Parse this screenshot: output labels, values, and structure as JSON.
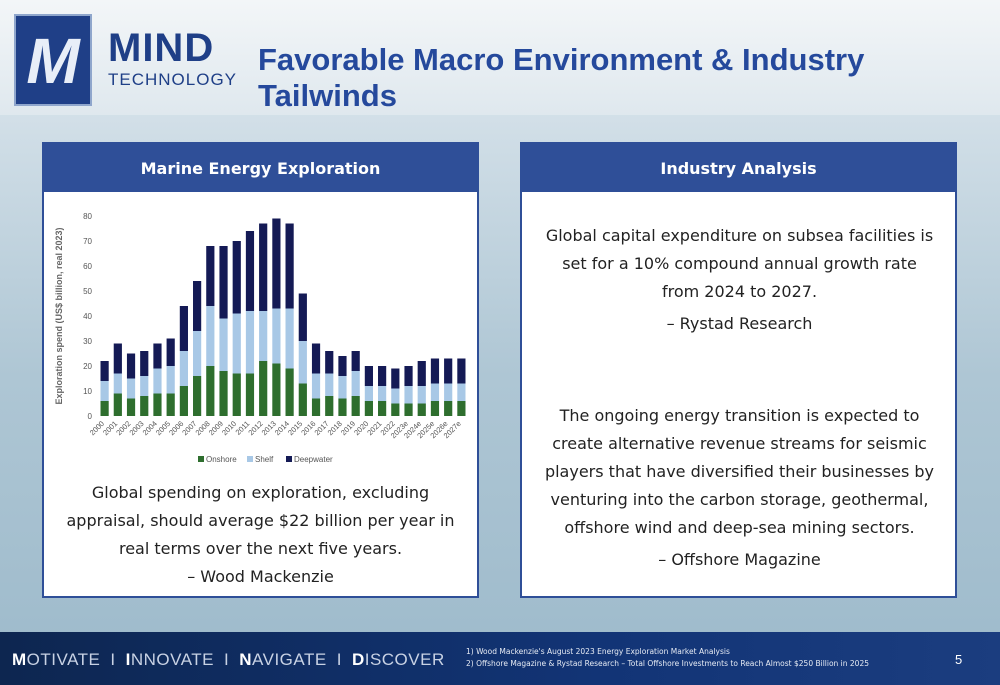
{
  "header": {
    "logo_text_main": "MIND",
    "logo_text_sub": "TECHNOLOGY",
    "logo_mark": "M",
    "title": "Favorable Macro Environment & Industry Tailwinds"
  },
  "left_panel": {
    "heading": "Marine Energy Exploration",
    "quote_lines": [
      "Global spending on exploration, excluding",
      "appraisal, should average $22 billion per year in",
      "real terms over the next five years."
    ],
    "attribution": "– Wood Mackenzie"
  },
  "right_panel": {
    "heading": "Industry Analysis",
    "quote1_lines": [
      "Global capital expenditure on subsea facilities is",
      "set for a 10% compound annual growth rate",
      "from 2024 to 2027."
    ],
    "attribution1": "– Rystad Research",
    "quote2_lines": [
      "The ongoing energy transition is expected to",
      "create alternative revenue streams for seismic",
      "players that have diversified their businesses by",
      "venturing into the carbon storage, geothermal,",
      "offshore wind and deep-sea mining sectors."
    ],
    "attribution2": "– Offshore Magazine"
  },
  "footer": {
    "tagline": [
      {
        "first": "M",
        "rest": "OTIVATE"
      },
      {
        "first": "I",
        "rest": "NNOVATE"
      },
      {
        "first": "N",
        "rest": "AVIGATE"
      },
      {
        "first": "D",
        "rest": "ISCOVER"
      }
    ],
    "separator": "I",
    "footnote1": "1) Wood Mackenzie's August 2023 Energy Exploration Market Analysis",
    "footnote2": "2) Offshore Magazine & Rystad Research – Total Offshore Investments to Reach Almost $250 Billion in 2025",
    "page_number": "5"
  },
  "colors": {
    "brand_blue": "#1f3f87",
    "panel_header": "#2f4f98",
    "title_blue": "#25499c",
    "onshore": "#2e6e2e",
    "shelf": "#a8c8e6",
    "deepwater": "#141a55"
  },
  "chart_data": {
    "type": "bar",
    "stacked": true,
    "categories": [
      "2000",
      "2001",
      "2002",
      "2003",
      "2004",
      "2005",
      "2006",
      "2007",
      "2008",
      "2009",
      "2010",
      "2011",
      "2012",
      "2013",
      "2014",
      "2015",
      "2016",
      "2017",
      "2018",
      "2019",
      "2020",
      "2021",
      "2022",
      "2023e",
      "2024e",
      "2025e",
      "2026e",
      "2027e"
    ],
    "series": [
      {
        "name": "Onshore",
        "color": "#2e6e2e",
        "values": [
          6,
          9,
          7,
          8,
          9,
          9,
          12,
          16,
          20,
          18,
          17,
          17,
          22,
          21,
          19,
          13,
          7,
          8,
          7,
          8,
          6,
          6,
          5,
          5,
          5,
          6,
          6,
          6
        ]
      },
      {
        "name": "Shelf",
        "color": "#a8c8e6",
        "values": [
          8,
          8,
          8,
          8,
          10,
          11,
          14,
          18,
          24,
          21,
          24,
          25,
          20,
          22,
          24,
          17,
          10,
          9,
          9,
          10,
          6,
          6,
          6,
          7,
          7,
          7,
          7,
          7
        ]
      },
      {
        "name": "Deepwater",
        "color": "#141a55",
        "values": [
          8,
          12,
          10,
          10,
          10,
          11,
          18,
          20,
          24,
          29,
          29,
          32,
          35,
          36,
          34,
          19,
          12,
          9,
          8,
          8,
          8,
          8,
          8,
          8,
          10,
          10,
          10,
          10
        ]
      }
    ],
    "ylabel": "Exploration spend (US$ billion, real 2023)",
    "ylim": [
      0,
      80
    ],
    "yticks": [
      0,
      10,
      20,
      30,
      40,
      50,
      60,
      70,
      80
    ],
    "grid": false,
    "legend_position": "bottom"
  }
}
